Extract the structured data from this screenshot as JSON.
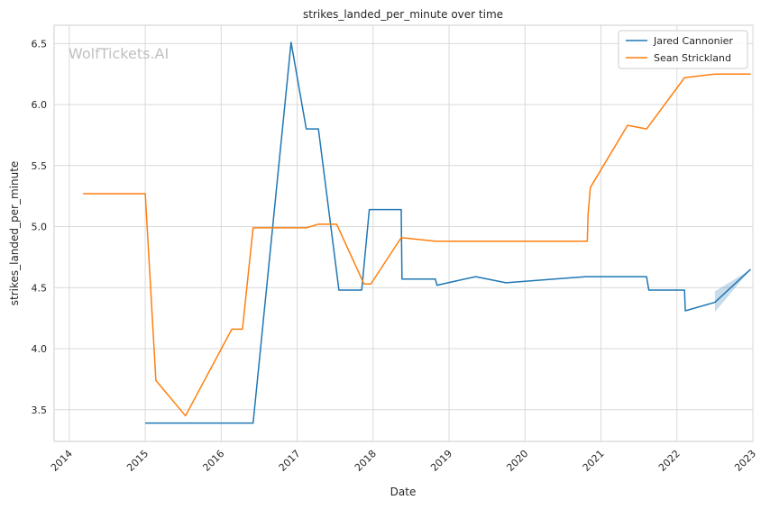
{
  "chart_data": {
    "type": "line",
    "title": "strikes_landed_per_minute over time",
    "xlabel": "Date",
    "ylabel": "strikes_landed_per_minute",
    "watermark": "WolfTickets.AI",
    "xlim": [
      2013.8,
      2023.0
    ],
    "ylim": [
      3.24,
      6.65
    ],
    "xticks": [
      2014,
      2015,
      2016,
      2017,
      2018,
      2019,
      2020,
      2021,
      2022,
      2023
    ],
    "yticks": [
      3.5,
      4.0,
      4.5,
      5.0,
      5.5,
      6.0,
      6.5
    ],
    "grid": true,
    "legend_position": "top-right",
    "series": [
      {
        "name": "Jared Cannonier",
        "color": "#1f77b4",
        "x": [
          2015.0,
          2015.5,
          2016.42,
          2016.92,
          2017.12,
          2017.28,
          2017.55,
          2017.85,
          2017.95,
          2018.37,
          2018.38,
          2018.82,
          2018.84,
          2019.35,
          2019.75,
          2020.8,
          2021.6,
          2021.63,
          2022.1,
          2022.11,
          2022.5,
          2022.97
        ],
        "y": [
          3.39,
          3.39,
          3.39,
          6.51,
          5.8,
          5.8,
          4.48,
          4.48,
          5.14,
          5.14,
          4.57,
          4.57,
          4.52,
          4.59,
          4.54,
          4.59,
          4.59,
          4.48,
          4.48,
          4.31,
          4.38,
          4.65
        ],
        "band": {
          "x": [
            2022.5,
            2022.97
          ],
          "lower": [
            4.3,
            4.65
          ],
          "upper": [
            4.47,
            4.65
          ]
        }
      },
      {
        "name": "Sean Strickland",
        "color": "#ff7f0e",
        "x": [
          2014.18,
          2015.0,
          2015.14,
          2015.53,
          2016.14,
          2016.28,
          2016.42,
          2017.12,
          2017.28,
          2017.52,
          2017.88,
          2017.97,
          2018.37,
          2018.82,
          2019.5,
          2020.82,
          2020.83,
          2020.86,
          2021.35,
          2021.6,
          2022.1,
          2022.5,
          2022.97
        ],
        "y": [
          5.27,
          5.27,
          3.74,
          3.45,
          4.16,
          4.16,
          4.99,
          4.99,
          5.02,
          5.02,
          4.53,
          4.53,
          4.91,
          4.88,
          4.88,
          4.88,
          5.1,
          5.32,
          5.83,
          5.8,
          6.22,
          6.25,
          6.25
        ]
      }
    ]
  }
}
